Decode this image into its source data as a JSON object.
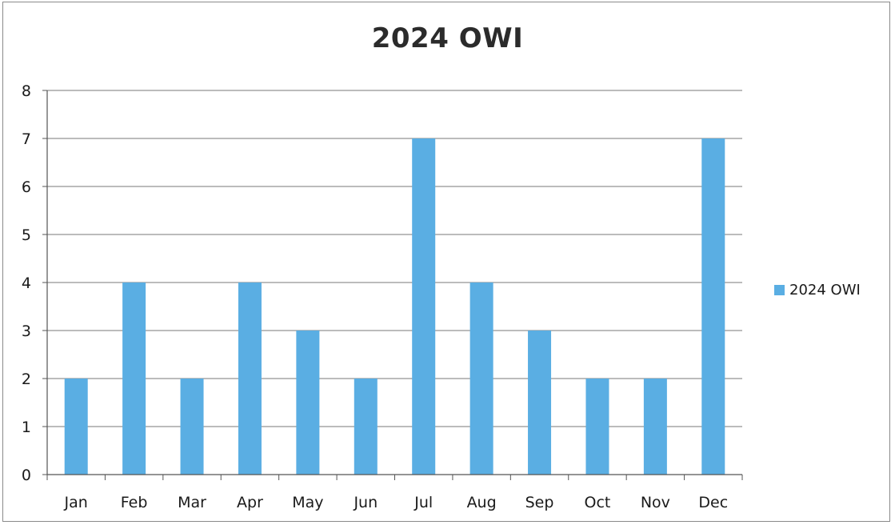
{
  "chart_data": {
    "type": "bar",
    "title": "2024 OWI",
    "xlabel": "",
    "ylabel": "",
    "categories": [
      "Jan",
      "Feb",
      "Mar",
      "Apr",
      "May",
      "Jun",
      "Jul",
      "Aug",
      "Sep",
      "Oct",
      "Nov",
      "Dec"
    ],
    "series": [
      {
        "name": "2024 OWI",
        "values": [
          2,
          4,
          2,
          4,
          3,
          2,
          7,
          4,
          3,
          2,
          2,
          7
        ],
        "color": "#5aaee3"
      }
    ],
    "ylim": [
      0,
      8
    ],
    "yticks": [
      0,
      1,
      2,
      3,
      4,
      5,
      6,
      7,
      8
    ],
    "grid": true,
    "legend": "right"
  }
}
